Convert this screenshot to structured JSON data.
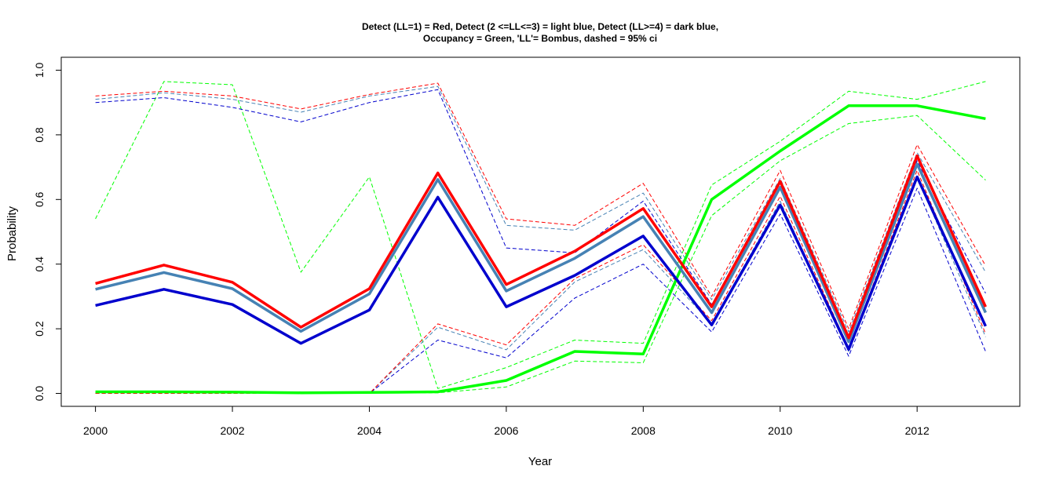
{
  "chart_data": {
    "type": "line",
    "title_line1": "Detect (LL=1) = Red, Detect (2 <=LL<=3) = light blue, Detect (LL>=4) = dark blue,",
    "title_line2": "Occupancy = Green, 'LL'= Bombus, dashed = 95% ci",
    "xlabel": "Year",
    "ylabel": "Probability",
    "xlim": [
      1999.5,
      2013.5
    ],
    "ylim": [
      -0.04,
      1.04
    ],
    "x_ticks": [
      2000,
      2002,
      2004,
      2006,
      2008,
      2010,
      2012
    ],
    "y_ticks": [
      0.0,
      0.2,
      0.4,
      0.6,
      0.8,
      1.0
    ],
    "x_tick_labels": [
      "2000",
      "2002",
      "2004",
      "2006",
      "2008",
      "2010",
      "2012"
    ],
    "y_tick_labels": [
      "0.0",
      "0.2",
      "0.4",
      "0.6",
      "0.8",
      "1.0"
    ],
    "x": [
      2000,
      2001,
      2002,
      2003,
      2004,
      2005,
      2006,
      2007,
      2008,
      2009,
      2010,
      2011,
      2012,
      2013
    ],
    "series": [
      {
        "color": "#00ff00",
        "style": "dashed",
        "values": [
          0.54,
          0.965,
          0.955,
          0.375,
          0.67,
          0.015,
          0.08,
          0.165,
          0.155,
          0.645,
          0.78,
          0.935,
          0.91,
          0.965
        ]
      },
      {
        "color": "#00ff00",
        "style": "dashed",
        "values": [
          0.002,
          0.002,
          0.002,
          0.001,
          0.001,
          0.002,
          0.02,
          0.1,
          0.095,
          0.55,
          0.72,
          0.835,
          0.86,
          0.66
        ]
      },
      {
        "color": "#4682b4",
        "style": "dashed",
        "values": [
          0.91,
          0.93,
          0.91,
          0.87,
          0.92,
          0.95,
          0.52,
          0.505,
          0.62,
          0.29,
          0.665,
          0.19,
          0.745,
          0.375
        ]
      },
      {
        "color": "#4682b4",
        "style": "dashed",
        "values": [
          0.0,
          0.0,
          0.0,
          0.0,
          0.0,
          0.205,
          0.135,
          0.345,
          0.445,
          0.215,
          0.595,
          0.13,
          0.67,
          0.175
        ]
      },
      {
        "color": "#0000cd",
        "style": "dashed",
        "values": [
          0.9,
          0.915,
          0.885,
          0.84,
          0.9,
          0.94,
          0.45,
          0.435,
          0.595,
          0.275,
          0.635,
          0.17,
          0.72,
          0.31
        ]
      },
      {
        "color": "#0000cd",
        "style": "dashed",
        "values": [
          0.0,
          0.0,
          0.0,
          0.0,
          0.0,
          0.165,
          0.11,
          0.295,
          0.4,
          0.19,
          0.555,
          0.115,
          0.635,
          0.13
        ]
      },
      {
        "color": "#ff0000",
        "style": "dashed",
        "values": [
          0.92,
          0.935,
          0.92,
          0.88,
          0.925,
          0.96,
          0.54,
          0.52,
          0.65,
          0.3,
          0.69,
          0.2,
          0.77,
          0.395
        ]
      },
      {
        "color": "#ff0000",
        "style": "dashed",
        "values": [
          0.0,
          0.0,
          0.0,
          0.0,
          0.0,
          0.215,
          0.15,
          0.355,
          0.46,
          0.225,
          0.61,
          0.14,
          0.69,
          0.185
        ]
      },
      {
        "color": "#00ff00",
        "style": "solid",
        "values": [
          0.005,
          0.005,
          0.004,
          0.002,
          0.003,
          0.005,
          0.04,
          0.13,
          0.122,
          0.6,
          0.75,
          0.89,
          0.89,
          0.85
        ]
      },
      {
        "color": "#0000cd",
        "style": "solid",
        "values": [
          0.272,
          0.322,
          0.275,
          0.155,
          0.258,
          0.607,
          0.268,
          0.365,
          0.487,
          0.212,
          0.583,
          0.136,
          0.67,
          0.208
        ]
      },
      {
        "color": "#4682b4",
        "style": "solid",
        "values": [
          0.322,
          0.374,
          0.324,
          0.192,
          0.308,
          0.662,
          0.317,
          0.418,
          0.547,
          0.25,
          0.638,
          0.16,
          0.71,
          0.25
        ]
      },
      {
        "color": "#ff0000",
        "style": "solid",
        "values": [
          0.34,
          0.397,
          0.344,
          0.205,
          0.324,
          0.682,
          0.337,
          0.44,
          0.572,
          0.268,
          0.656,
          0.172,
          0.735,
          0.268
        ]
      }
    ]
  }
}
